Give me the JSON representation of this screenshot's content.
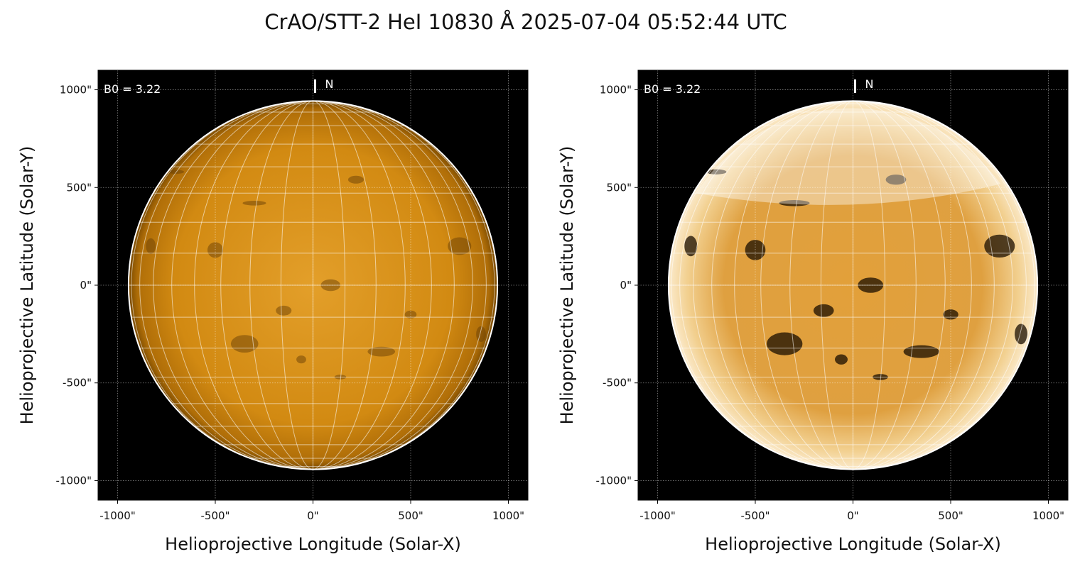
{
  "title": "CrAO/STT-2 HeI 10830 Å 2025-07-04 05:52:44 UTC",
  "chart_data": [
    {
      "type": "heatmap",
      "xlabel": "Helioprojective Longitude (Solar-X)",
      "ylabel": "Helioprojective Latitude (Solar-Y)",
      "xlim": [
        -1100,
        1100
      ],
      "ylim": [
        -1100,
        1100
      ],
      "xticks": [
        "-1000\"",
        "-500\"",
        "0\"",
        "500\"",
        "1000\""
      ],
      "yticks": [
        "1000\"",
        "500\"",
        "0\"",
        "-500\"",
        "-1000\""
      ],
      "tick_values": [
        -1000,
        -500,
        0,
        500,
        1000
      ],
      "annotation": "B0 = 3.22",
      "north_label": "N",
      "grid": true,
      "disk_radius_arcsec": 944,
      "colormap": [
        "#000000",
        "#8a5500",
        "#d08a10",
        "#f0c060",
        "#ffffff"
      ]
    },
    {
      "type": "heatmap",
      "xlabel": "Helioprojective Longitude (Solar-X)",
      "ylabel": "Helioprojective Latitude (Solar-Y)",
      "xlim": [
        -1100,
        1100
      ],
      "ylim": [
        -1100,
        1100
      ],
      "xticks": [
        "-1000\"",
        "-500\"",
        "0\"",
        "500\"",
        "1000\""
      ],
      "yticks": [
        "1000\"",
        "500\"",
        "0\"",
        "-500\"",
        "-1000\""
      ],
      "tick_values": [
        -1000,
        -500,
        0,
        500,
        1000
      ],
      "annotation": "B0 = 3.22",
      "north_label": "N",
      "grid": true,
      "disk_radius_arcsec": 944,
      "colormap": [
        "#000000",
        "#8a5500",
        "#d08a10",
        "#f0c060",
        "#ffffff"
      ]
    }
  ]
}
